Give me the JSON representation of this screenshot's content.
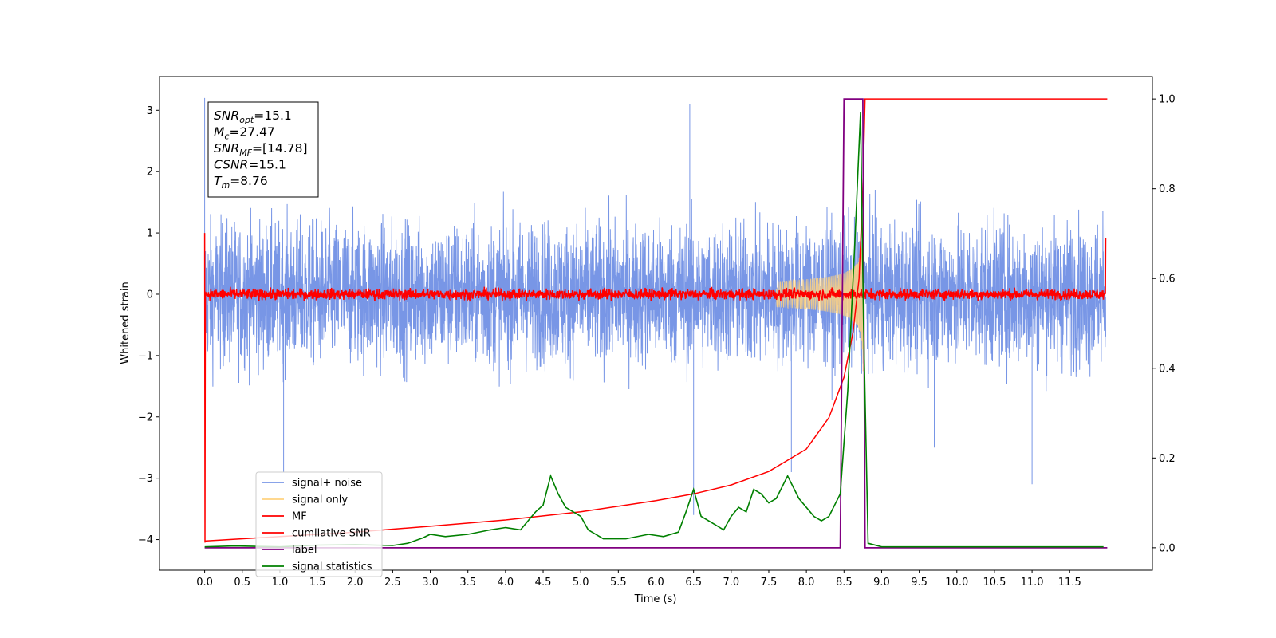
{
  "chart_data": {
    "type": "line",
    "xlabel": "Time (s)",
    "ylabel": "Whitened strain",
    "xlim": [
      -0.6,
      12.6
    ],
    "ylim": [
      -4.5,
      3.55
    ],
    "y2lim": [
      -0.05,
      1.05
    ],
    "x_ticks": [
      "0.0",
      "0.5",
      "1.0",
      "1.5",
      "2.0",
      "2.5",
      "3.0",
      "3.5",
      "4.0",
      "4.5",
      "5.0",
      "5.5",
      "6.0",
      "6.5",
      "7.0",
      "7.5",
      "8.0",
      "8.5",
      "9.0",
      "9.5",
      "10.0",
      "10.5",
      "11.0",
      "11.5"
    ],
    "y_ticks": [
      "3",
      "2",
      "1",
      "0",
      "−1",
      "−2",
      "−3",
      "−4"
    ],
    "y2_ticks": [
      "1.0",
      "0.8",
      "0.6",
      "0.4",
      "0.2",
      "0.0"
    ],
    "annotation": [
      {
        "sym": "SNR",
        "sub": "opt",
        "val": "=15.1"
      },
      {
        "sym": "M",
        "sub": "c",
        "val": "=27.47"
      },
      {
        "sym": "SNR",
        "sub": "MF",
        "val": "=[14.78]"
      },
      {
        "sym": "CSNR",
        "sub": "",
        "val": "=15.1"
      },
      {
        "sym": "T",
        "sub": "m",
        "val": "=8.76"
      }
    ],
    "series": [
      {
        "name": "signal+ noise",
        "color": "#7896e6",
        "kind": "noise",
        "amplitude": 1.8,
        "spikes": [
          [
            0.0,
            3.2
          ],
          [
            1.05,
            -2.9
          ],
          [
            6.5,
            -3.6
          ],
          [
            6.45,
            3.1
          ],
          [
            11.0,
            -3.1
          ],
          [
            9.7,
            -2.5
          ],
          [
            7.8,
            -2.9
          ]
        ]
      },
      {
        "name": "signal only",
        "color": "#ffd27f",
        "kind": "chirp",
        "t_merge": 8.76
      },
      {
        "name": "MF",
        "color": "#ff0000",
        "kind": "mf",
        "level": 0.0,
        "edge_values": [
          1.0,
          0.92
        ]
      },
      {
        "name": "cumilative SNR",
        "color": "#ff0000",
        "axis": "right",
        "points": [
          [
            0.0,
            0.015
          ],
          [
            1.0,
            0.025
          ],
          [
            2.0,
            0.035
          ],
          [
            3.0,
            0.048
          ],
          [
            4.0,
            0.062
          ],
          [
            5.0,
            0.08
          ],
          [
            6.0,
            0.105
          ],
          [
            6.5,
            0.12
          ],
          [
            7.0,
            0.14
          ],
          [
            7.5,
            0.17
          ],
          [
            8.0,
            0.22
          ],
          [
            8.3,
            0.29
          ],
          [
            8.5,
            0.38
          ],
          [
            8.62,
            0.48
          ],
          [
            8.7,
            0.6
          ],
          [
            8.75,
            0.8
          ],
          [
            8.78,
            1.0
          ],
          [
            12.0,
            1.0
          ]
        ]
      },
      {
        "name": "label",
        "color": "#800080",
        "axis": "right",
        "points": [
          [
            0.0,
            0.0
          ],
          [
            8.45,
            0.0
          ],
          [
            8.5,
            1.0
          ],
          [
            8.75,
            1.0
          ],
          [
            8.78,
            0.0
          ],
          [
            12.0,
            0.0
          ]
        ]
      },
      {
        "name": "signal statistics",
        "color": "#008000",
        "axis": "right",
        "points": [
          [
            0.0,
            0.002
          ],
          [
            0.4,
            0.004
          ],
          [
            1.0,
            0.002
          ],
          [
            1.5,
            0.006
          ],
          [
            2.0,
            0.007
          ],
          [
            2.5,
            0.005
          ],
          [
            2.7,
            0.01
          ],
          [
            2.9,
            0.022
          ],
          [
            3.0,
            0.03
          ],
          [
            3.2,
            0.025
          ],
          [
            3.5,
            0.03
          ],
          [
            3.8,
            0.04
          ],
          [
            4.0,
            0.045
          ],
          [
            4.2,
            0.04
          ],
          [
            4.4,
            0.08
          ],
          [
            4.5,
            0.095
          ],
          [
            4.6,
            0.16
          ],
          [
            4.7,
            0.12
          ],
          [
            4.8,
            0.09
          ],
          [
            5.0,
            0.07
          ],
          [
            5.1,
            0.04
          ],
          [
            5.3,
            0.02
          ],
          [
            5.6,
            0.02
          ],
          [
            5.9,
            0.03
          ],
          [
            6.1,
            0.025
          ],
          [
            6.3,
            0.035
          ],
          [
            6.4,
            0.08
          ],
          [
            6.5,
            0.13
          ],
          [
            6.6,
            0.07
          ],
          [
            6.8,
            0.05
          ],
          [
            6.9,
            0.04
          ],
          [
            7.0,
            0.07
          ],
          [
            7.1,
            0.09
          ],
          [
            7.2,
            0.08
          ],
          [
            7.3,
            0.13
          ],
          [
            7.4,
            0.12
          ],
          [
            7.5,
            0.1
          ],
          [
            7.6,
            0.11
          ],
          [
            7.75,
            0.16
          ],
          [
            7.9,
            0.11
          ],
          [
            8.1,
            0.07
          ],
          [
            8.2,
            0.06
          ],
          [
            8.3,
            0.07
          ],
          [
            8.45,
            0.12
          ],
          [
            8.55,
            0.35
          ],
          [
            8.65,
            0.7
          ],
          [
            8.72,
            0.97
          ],
          [
            8.76,
            0.5
          ],
          [
            8.82,
            0.01
          ],
          [
            9.0,
            0.002
          ],
          [
            11.95,
            0.002
          ]
        ]
      }
    ],
    "legend_position": "lower-left"
  }
}
